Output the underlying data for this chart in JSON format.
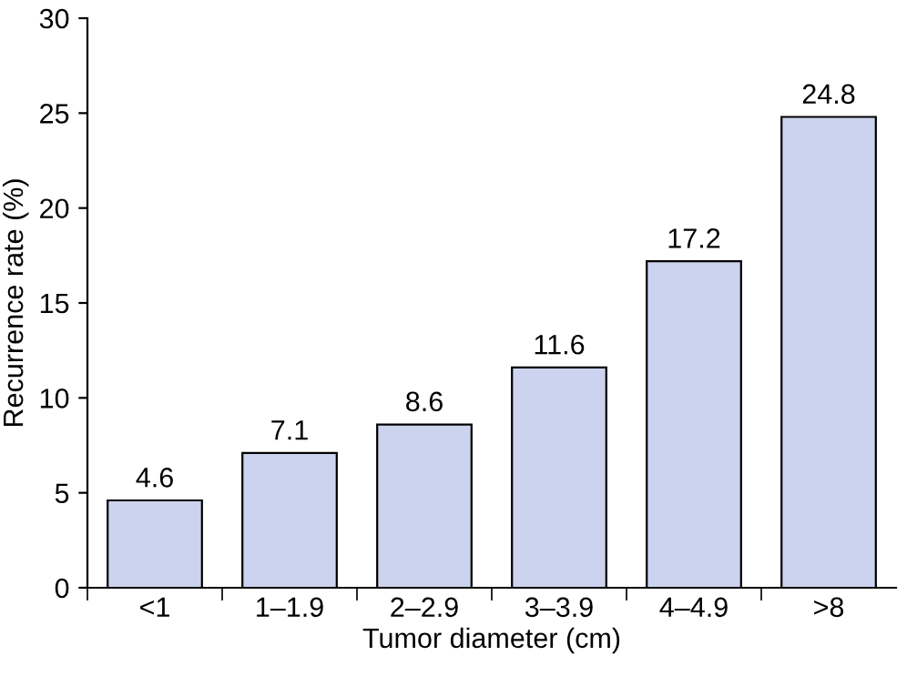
{
  "chart_data": {
    "type": "bar",
    "xlabel": "Tumor diameter (cm)",
    "ylabel": "Recurrence rate (%)",
    "categories": [
      "<1",
      "1–1.9",
      "2–2.9",
      "3–3.9",
      "4–4.9",
      ">8"
    ],
    "values": [
      4.6,
      7.1,
      8.6,
      11.6,
      17.2,
      24.8
    ],
    "color": "#ccd3ee",
    "data_labels": true,
    "ylim": [
      0,
      30
    ],
    "yticks": [
      0,
      5,
      10,
      15,
      20,
      25,
      30
    ],
    "grid": false,
    "legend": false
  }
}
